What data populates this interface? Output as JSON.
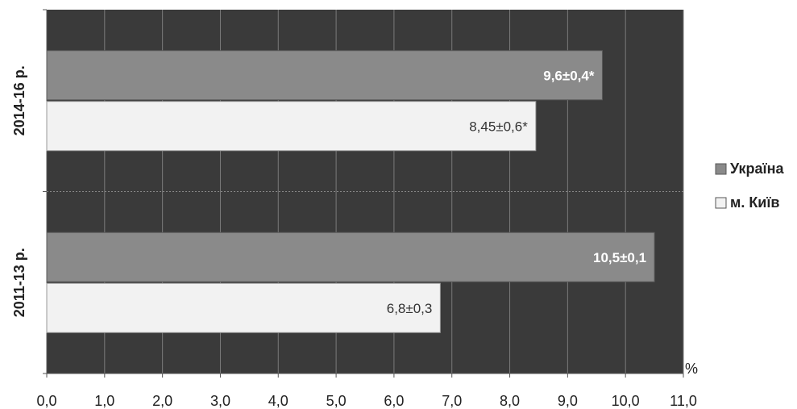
{
  "chart_data": {
    "type": "bar",
    "orientation": "horizontal",
    "categories": [
      "2014-16 р.",
      "2011-13 р."
    ],
    "series": [
      {
        "name": "Україна",
        "values": [
          9.6,
          10.5
        ],
        "labels": [
          "9,6±0,4*",
          "10,5±0,1"
        ],
        "color": "#8a8a8a"
      },
      {
        "name": "м. Київ",
        "values": [
          8.45,
          6.8
        ],
        "labels": [
          "8,45±0,6*",
          "6,8±0,3"
        ],
        "color": "#f2f2f2"
      }
    ],
    "x_unit": "%",
    "xlim": [
      0,
      11
    ],
    "x_ticks": [
      "0,0",
      "1,0",
      "2,0",
      "3,0",
      "4,0",
      "5,0",
      "6,0",
      "7,0",
      "8,0",
      "9,0",
      "10,0",
      "11,0"
    ],
    "grid": true,
    "plot_background": "#3a3a3a",
    "legend_position": "right"
  }
}
